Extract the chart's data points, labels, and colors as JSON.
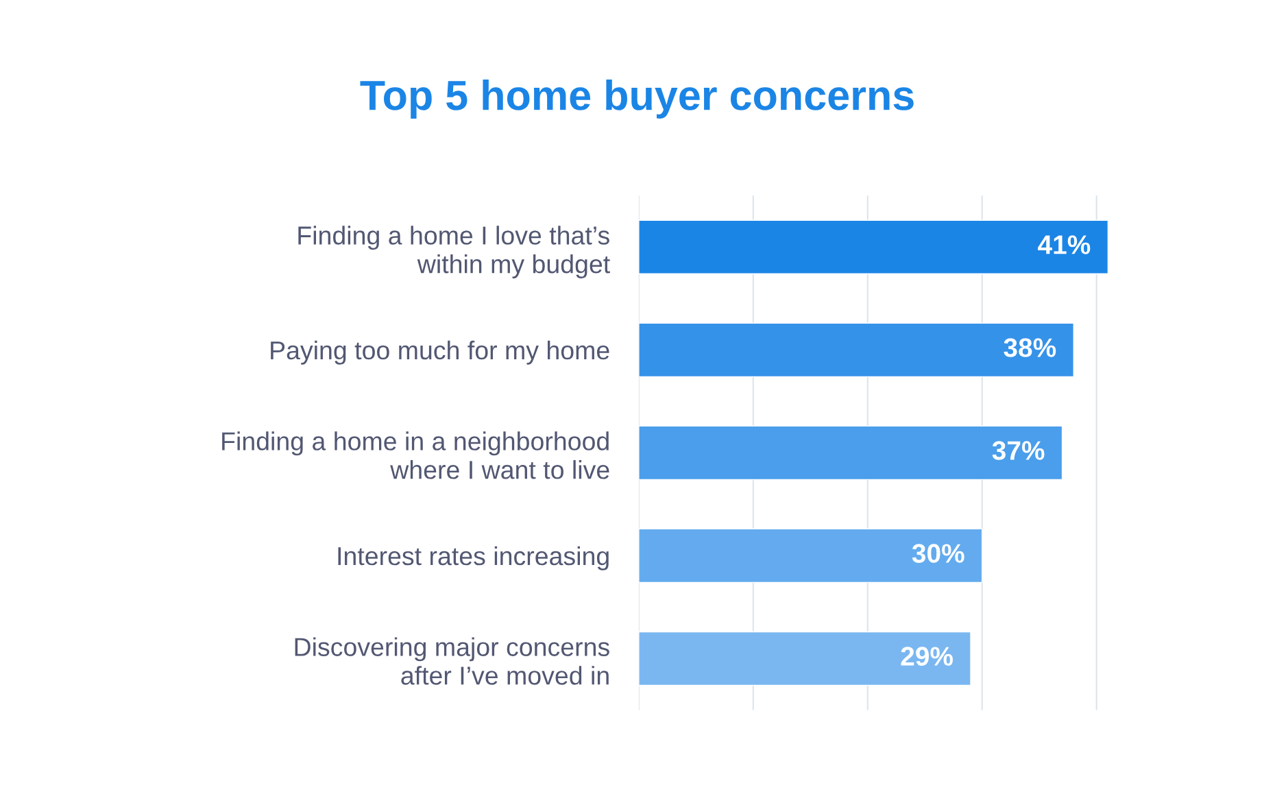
{
  "chart_data": {
    "type": "bar",
    "orientation": "horizontal",
    "title": "Top 5 home buyer concerns",
    "categories": [
      "Finding a home I love that’s\nwithin my budget",
      "Paying too much for my home",
      "Finding a home in a neighborhood\nwhere I want to live",
      "Interest rates increasing",
      "Discovering major concerns\nafter I’ve moved in"
    ],
    "values": [
      41,
      38,
      37,
      30,
      29
    ],
    "colors": [
      "#1b85e6",
      "#3592e9",
      "#4a9eeb",
      "#63abee",
      "#7ab7f1"
    ],
    "xlim": [
      0,
      41
    ],
    "xticks": [
      {
        "value": 0,
        "label": null
      },
      {
        "value": 10,
        "label": null
      },
      {
        "value": 20,
        "label": null
      },
      {
        "value": 30,
        "label": null
      },
      {
        "value": 40,
        "label": null
      }
    ],
    "value_labels": [
      "41%",
      "38%",
      "37%",
      "30%",
      "29%"
    ],
    "grid": "x",
    "tick_labels": "y"
  }
}
